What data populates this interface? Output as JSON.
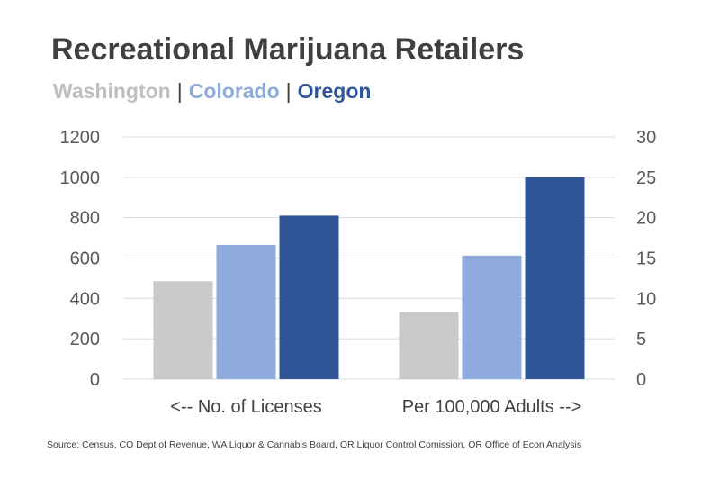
{
  "chart_data": {
    "type": "bar",
    "title": "Recreational Marijuana Retailers",
    "subtitle": {
      "states": [
        "Washington",
        "Colorado",
        "Oregon"
      ],
      "separator": "|"
    },
    "categories": [
      "<-- No. of Licenses",
      "Per 100,000 Adults -->"
    ],
    "series": [
      {
        "name": "Washington",
        "color": "#c9c9c9",
        "values": [
          485,
          8.3
        ]
      },
      {
        "name": "Colorado",
        "color": "#8faadc",
        "values": [
          665,
          15.3
        ]
      },
      {
        "name": "Oregon",
        "color": "#2f5597",
        "values": [
          810,
          25
        ]
      }
    ],
    "value_axis_by_category": [
      "left",
      "right"
    ],
    "y_left": {
      "ylim": [
        0,
        1200
      ],
      "ticks": [
        "0",
        "200",
        "400",
        "600",
        "800",
        "1000",
        "1200"
      ]
    },
    "y_right": {
      "ylim": [
        0,
        30
      ],
      "ticks": [
        "0",
        "5",
        "10",
        "15",
        "20",
        "25",
        "30"
      ]
    },
    "grid": true,
    "legend": "subtitle",
    "source": "Source: Census, CO  Dept of Revenue, WA Liquor & Cannabis Board, OR Liquor Control Comission, OR Office of Econ Analysis"
  }
}
